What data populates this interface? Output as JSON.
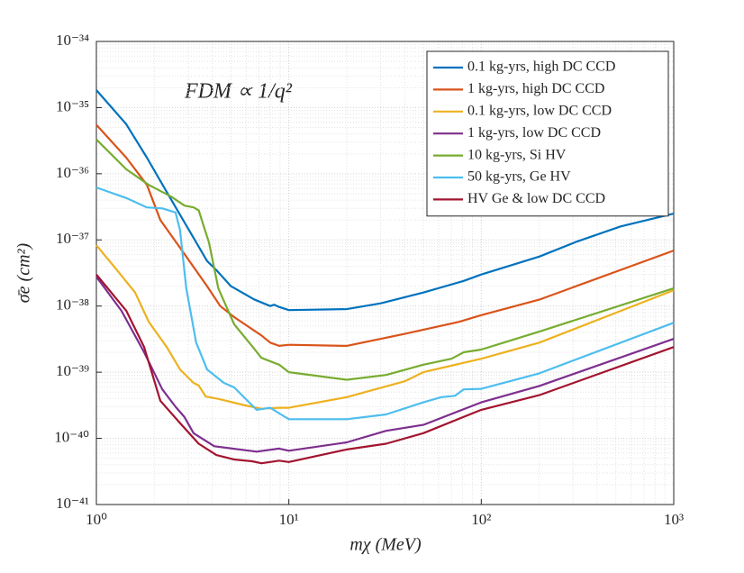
{
  "chart_data": {
    "type": "line",
    "xscale": "log",
    "yscale": "log",
    "grid": true,
    "legend": "upper right",
    "annotation": "FDM ∝ 1/q²",
    "xlabel": "mχ (MeV)",
    "ylabel": "σ̄e (cm²)",
    "xlim": [
      1,
      1000
    ],
    "ylim": [
      1e-41,
      1e-34
    ],
    "xticks": [
      {
        "value": 1,
        "label": "10⁰"
      },
      {
        "value": 10,
        "label": "10¹"
      },
      {
        "value": 100,
        "label": "10²"
      },
      {
        "value": 1000,
        "label": "10³"
      }
    ],
    "yticks": [
      {
        "value": 1e-41,
        "label": "10⁻⁴¹"
      },
      {
        "value": 1e-40,
        "label": "10⁻⁴⁰"
      },
      {
        "value": 1e-39,
        "label": "10⁻³⁹"
      },
      {
        "value": 1e-38,
        "label": "10⁻³⁸"
      },
      {
        "value": 1e-37,
        "label": "10⁻³⁷"
      },
      {
        "value": 1e-36,
        "label": "10⁻³⁶"
      },
      {
        "value": 1e-35,
        "label": "10⁻³⁵"
      },
      {
        "value": 1e-34,
        "label": "10⁻³⁴"
      }
    ],
    "series": [
      {
        "name": "0.1 kg-yrs, high DC CCD",
        "color": "#0072bd",
        "x": [
          1,
          1.43,
          1.83,
          2.32,
          2.72,
          3.76,
          4.2,
          5.0,
          6.6,
          8.0,
          8.4,
          8.9,
          10,
          20,
          30,
          50,
          81,
          100,
          200,
          316,
          530,
          1000
        ],
        "values": [
          1.84e-35,
          5.6e-36,
          1.75e-36,
          5.3e-37,
          2.4e-37,
          4.8e-38,
          3.5e-38,
          2e-38,
          1.26e-38,
          1e-38,
          1.05e-38,
          9.7e-39,
          8.7e-39,
          9e-39,
          1.1e-38,
          1.6e-38,
          2.4e-38,
          3e-38,
          5.6e-38,
          9.5e-38,
          1.6e-37,
          2.5e-37
        ]
      },
      {
        "name": "1 kg-yrs, high DC CCD",
        "color": "#d95319",
        "x": [
          1,
          1.43,
          1.83,
          2.15,
          2.72,
          3.76,
          4.4,
          5.2,
          7.2,
          8,
          8.9,
          10,
          20,
          40,
          77,
          100,
          200,
          1000
        ],
        "values": [
          5.5e-36,
          1.75e-36,
          6.8e-37,
          2e-37,
          7.6e-38,
          2e-38,
          1e-38,
          6.8e-39,
          3.6e-39,
          2.8e-39,
          2.5e-39,
          2.6e-39,
          2.5e-39,
          3.8e-39,
          5.8e-39,
          7.3e-39,
          1.25e-38,
          6.9e-38
        ]
      },
      {
        "name": "0.1 kg-yrs, low DC CCD",
        "color": "#edb120",
        "x": [
          1,
          1.28,
          1.59,
          1.87,
          2.32,
          2.72,
          3.2,
          3.4,
          3.7,
          4.4,
          5.8,
          7.2,
          8.9,
          10,
          20,
          40,
          50,
          100,
          200,
          1000
        ],
        "values": [
          8.3e-38,
          3.5e-38,
          1.6e-38,
          5.8e-39,
          2.4e-39,
          1.1e-39,
          6.9e-40,
          6.3e-40,
          4.3e-40,
          3.9e-40,
          3.2e-40,
          2.8e-40,
          2.9e-40,
          2.9e-40,
          4.2e-40,
          7.3e-40,
          1e-39,
          1.6e-39,
          2.8e-39,
          1.74e-38
        ]
      },
      {
        "name": "1 kg-yrs, low DC CCD",
        "color": "#7e2f8e",
        "x": [
          1,
          1.35,
          1.77,
          2.2,
          2.58,
          2.87,
          3.2,
          4.1,
          6.8,
          8.9,
          10,
          20,
          32,
          50,
          100,
          200,
          1000
        ],
        "values": [
          2.77e-38,
          8.5e-39,
          2e-39,
          5.5e-40,
          3e-40,
          2.1e-40,
          1.2e-40,
          7.6e-41,
          6.3e-41,
          7e-41,
          6.5e-41,
          8.7e-41,
          1.3e-40,
          1.6e-40,
          3.5e-40,
          6.2e-40,
          3.2e-39
        ]
      },
      {
        "name": "10 kg-yrs, Si HV",
        "color": "#77ac30",
        "x": [
          1,
          1.43,
          1.87,
          2.45,
          2.87,
          3.2,
          3.4,
          3.85,
          4.3,
          5.2,
          6.5,
          7.2,
          8.9,
          10,
          20,
          32,
          50,
          70,
          81,
          100,
          200,
          1000
        ],
        "values": [
          3.3e-36,
          1.17e-36,
          6.8e-37,
          4.5e-37,
          3.3e-37,
          3.1e-37,
          2.8e-37,
          9e-38,
          1.85e-38,
          5.3e-39,
          2.4e-39,
          1.65e-39,
          1.3e-39,
          1e-39,
          7.7e-40,
          9.1e-40,
          1.3e-39,
          1.6e-39,
          2e-39,
          2.2e-39,
          4.1e-39,
          1.86e-38
        ]
      },
      {
        "name": "50 kg-yrs, Ge HV",
        "color": "#4dbeee",
        "x": [
          1,
          1.43,
          1.83,
          2.2,
          2.58,
          2.72,
          2.93,
          3.3,
          3.76,
          4.6,
          5.2,
          6.8,
          8,
          9.1,
          10,
          20,
          32,
          50,
          62,
          73,
          81,
          100,
          200,
          1000
        ],
        "values": [
          6.2e-37,
          4.3e-37,
          3.1e-37,
          3e-37,
          2.6e-37,
          1.4e-37,
          1.85e-38,
          2.8e-39,
          1.1e-39,
          6.9e-40,
          5.9e-40,
          2.7e-40,
          2.9e-40,
          2.3e-40,
          1.95e-40,
          1.95e-40,
          2.3e-40,
          3.5e-40,
          4.2e-40,
          4.4e-40,
          5.5e-40,
          5.6e-40,
          9.6e-40,
          5.6e-39
        ]
      },
      {
        "name": "HV Ge & low DC CCD",
        "color": "#a2142f",
        "x": [
          1,
          1.43,
          1.77,
          2.15,
          2.72,
          3.4,
          4.2,
          5.2,
          6.45,
          7.2,
          8,
          8.9,
          10,
          20,
          32,
          50,
          100,
          200,
          1000
        ],
        "values": [
          3e-38,
          8.5e-39,
          2.4e-39,
          3.7e-40,
          1.7e-40,
          8.3e-41,
          5.6e-41,
          4.8e-41,
          4.5e-41,
          4.2e-41,
          4.4e-41,
          4.6e-41,
          4.4e-41,
          6.8e-41,
          8.3e-41,
          1.2e-40,
          2.7e-40,
          4.5e-40,
          2.4e-39
        ]
      }
    ]
  }
}
